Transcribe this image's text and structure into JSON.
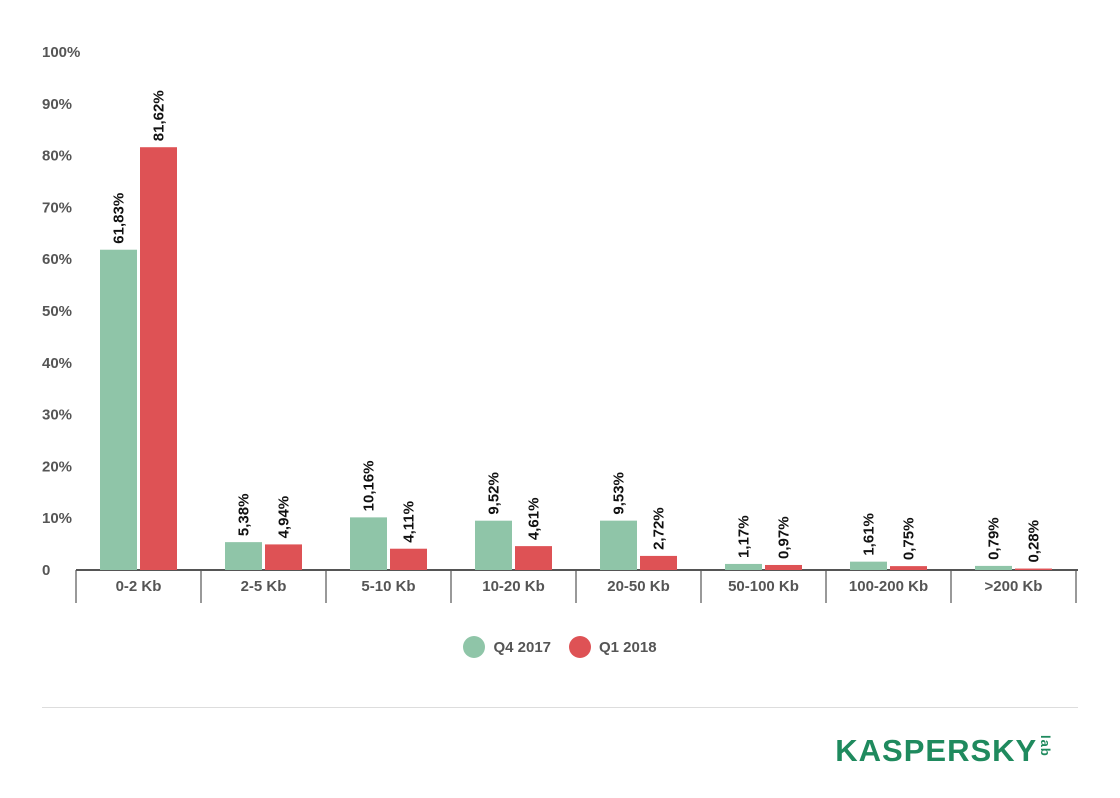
{
  "chart_data": {
    "type": "bar",
    "categories": [
      "0-2 Kb",
      "2-5 Kb",
      "5-10 Kb",
      "10-20 Kb",
      "20-50 Kb",
      "50-100 Kb",
      "100-200 Kb",
      ">200 Kb"
    ],
    "series": [
      {
        "name": "Q4 2017",
        "color": "#8fc5a8",
        "values": [
          61.83,
          5.38,
          10.16,
          9.52,
          9.53,
          1.17,
          1.61,
          0.79
        ],
        "labels": [
          "61,83%",
          "5,38%",
          "10,16%",
          "9,52%",
          "9,53%",
          "1,17%",
          "1,61%",
          "0,79%"
        ]
      },
      {
        "name": "Q1 2018",
        "color": "#de5255",
        "values": [
          81.62,
          4.94,
          4.11,
          4.61,
          2.72,
          0.97,
          0.75,
          0.28
        ],
        "labels": [
          "81,62%",
          "4,94%",
          "4,11%",
          "4,61%",
          "2,72%",
          "0,97%",
          "0,75%",
          "0,28%"
        ]
      }
    ],
    "y_ticks": [
      "0",
      "10%",
      "20%",
      "30%",
      "40%",
      "50%",
      "60%",
      "70%",
      "80%",
      "90%",
      "100%"
    ],
    "ylim": [
      0,
      100
    ],
    "grid": false,
    "legend_position": "bottom-center"
  },
  "legend": {
    "q4_label": "Q4 2017",
    "q1_label": "Q1 2018"
  },
  "logo": {
    "main": "KASPERSKY",
    "sub": "lab"
  }
}
